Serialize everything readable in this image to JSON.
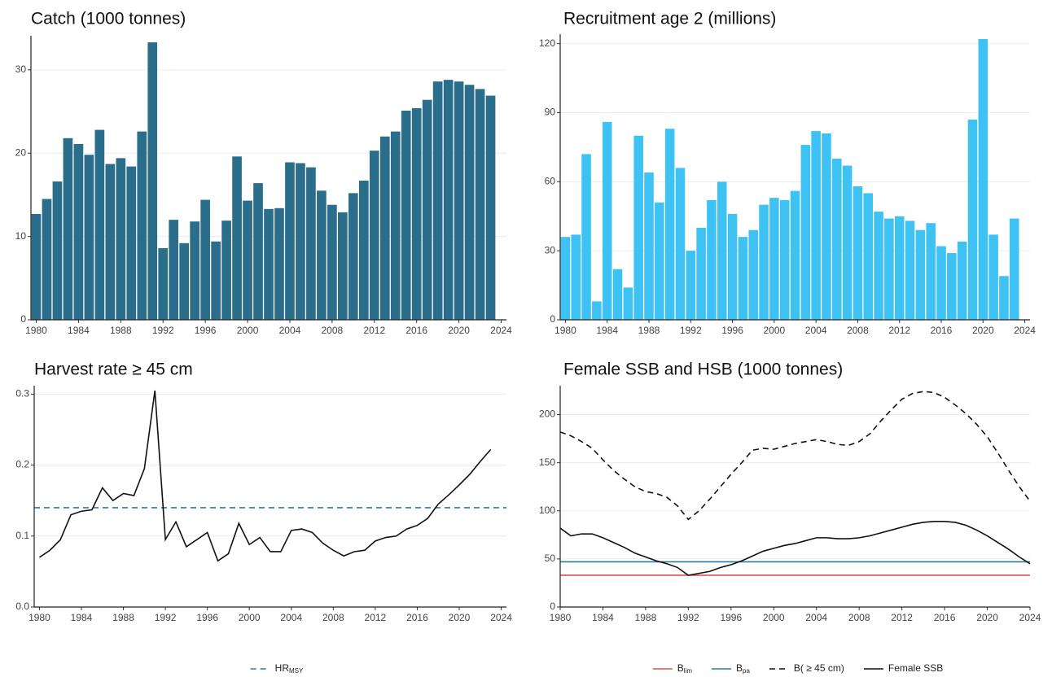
{
  "chart_data": [
    {
      "type": "bar",
      "title": "Catch (1000 tonnes)",
      "x": [
        1980,
        1981,
        1982,
        1983,
        1984,
        1985,
        1986,
        1987,
        1988,
        1989,
        1990,
        1991,
        1992,
        1993,
        1994,
        1995,
        1996,
        1997,
        1998,
        1999,
        2000,
        2001,
        2002,
        2003,
        2004,
        2005,
        2006,
        2007,
        2008,
        2009,
        2010,
        2011,
        2012,
        2013,
        2014,
        2015,
        2016,
        2017,
        2018,
        2019,
        2020,
        2021,
        2022,
        2023
      ],
      "series": [
        {
          "color": "#2a6e8c",
          "values": [
            12.7,
            14.5,
            16.6,
            21.8,
            21.1,
            19.8,
            22.8,
            18.7,
            19.4,
            18.4,
            22.6,
            33.3,
            8.6,
            12.0,
            9.2,
            11.8,
            14.4,
            9.4,
            11.9,
            19.6,
            14.3,
            16.4,
            13.3,
            13.4,
            18.9,
            18.8,
            18.3,
            15.5,
            13.8,
            12.9,
            15.2,
            16.7,
            20.3,
            22.0,
            22.6,
            25.1,
            25.4,
            26.4,
            28.6,
            28.8,
            28.6,
            28.2,
            27.7,
            26.9
          ]
        }
      ],
      "xlim": [
        1979.5,
        2024.5
      ],
      "xticks": [
        1980,
        1984,
        1988,
        1992,
        1996,
        2000,
        2004,
        2008,
        2012,
        2016,
        2020,
        2024
      ],
      "ylim": [
        0,
        33.5
      ],
      "yticks": [
        0,
        10,
        20,
        30
      ],
      "grid": true
    },
    {
      "type": "bar",
      "title": "Recruitment age 2 (millions)",
      "x": [
        1980,
        1981,
        1982,
        1983,
        1984,
        1985,
        1986,
        1987,
        1988,
        1989,
        1990,
        1991,
        1992,
        1993,
        1994,
        1995,
        1996,
        1997,
        1998,
        1999,
        2000,
        2001,
        2002,
        2003,
        2004,
        2005,
        2006,
        2007,
        2008,
        2009,
        2010,
        2011,
        2012,
        2013,
        2014,
        2015,
        2016,
        2017,
        2018,
        2019,
        2020,
        2021,
        2022,
        2023
      ],
      "series": [
        {
          "color": "#3ec1f3",
          "values": [
            36,
            37,
            72,
            8,
            86,
            22,
            14,
            80,
            64,
            51,
            83,
            66,
            30,
            40,
            52,
            60,
            46,
            36,
            39,
            50,
            53,
            52,
            56,
            76,
            82,
            81,
            70,
            67,
            58,
            55,
            47,
            44,
            45,
            43,
            39,
            42,
            32,
            29,
            34,
            87,
            122,
            37,
            19,
            44
          ]
        }
      ],
      "xlim": [
        1979.5,
        2024.5
      ],
      "xticks": [
        1980,
        1984,
        1988,
        1992,
        1996,
        2000,
        2004,
        2008,
        2012,
        2016,
        2020,
        2024
      ],
      "ylim": [
        0,
        122
      ],
      "yticks": [
        0,
        30,
        60,
        90,
        120
      ],
      "grid": true
    },
    {
      "type": "line",
      "title": "Harvest rate  ≥ 45 cm",
      "x": [
        1980,
        1981,
        1982,
        1983,
        1984,
        1985,
        1986,
        1987,
        1988,
        1989,
        1990,
        1991,
        1992,
        1993,
        1994,
        1995,
        1996,
        1997,
        1998,
        1999,
        2000,
        2001,
        2002,
        2003,
        2004,
        2005,
        2006,
        2007,
        2008,
        2009,
        2010,
        2011,
        2012,
        2013,
        2014,
        2015,
        2016,
        2017,
        2018,
        2019,
        2020,
        2021,
        2022,
        2023
      ],
      "series": [
        {
          "color": "#111111",
          "values": [
            0.07,
            0.08,
            0.095,
            0.13,
            0.135,
            0.137,
            0.168,
            0.15,
            0.16,
            0.157,
            0.195,
            0.305,
            0.095,
            0.12,
            0.085,
            0.095,
            0.105,
            0.065,
            0.075,
            0.118,
            0.088,
            0.098,
            0.078,
            0.078,
            0.108,
            0.11,
            0.105,
            0.09,
            0.08,
            0.072,
            0.078,
            0.08,
            0.093,
            0.098,
            0.1,
            0.11,
            0.115,
            0.125,
            0.145,
            0.158,
            0.172,
            0.187,
            0.205,
            0.222
          ]
        }
      ],
      "hlines": [
        {
          "name": "HR",
          "sub": "MSY",
          "value": 0.14,
          "color": "#2a7aa8",
          "dash": true
        }
      ],
      "xlim": [
        1979.5,
        2024.5
      ],
      "xticks": [
        1980,
        1984,
        1988,
        1992,
        1996,
        2000,
        2004,
        2008,
        2012,
        2016,
        2020,
        2024
      ],
      "ylim": [
        0,
        0.305
      ],
      "yticks": [
        {
          "value": 0,
          "label": "0.0"
        },
        0.1,
        0.2,
        0.3
      ],
      "grid": true,
      "legend": "bottom"
    },
    {
      "type": "line",
      "title": "Female SSB and HSB (1000 tonnes)",
      "x": [
        1980,
        1981,
        1982,
        1983,
        1984,
        1985,
        1986,
        1987,
        1988,
        1989,
        1990,
        1991,
        1992,
        1993,
        1994,
        1995,
        1996,
        1997,
        1998,
        1999,
        2000,
        2001,
        2002,
        2003,
        2004,
        2005,
        2006,
        2007,
        2008,
        2009,
        2010,
        2011,
        2012,
        2013,
        2014,
        2015,
        2016,
        2017,
        2018,
        2019,
        2020,
        2021,
        2022,
        2023,
        2024
      ],
      "series": [
        {
          "name": "B( ≥ 45 cm)",
          "color": "#111111",
          "dash": true,
          "values": [
            182,
            178,
            172,
            165,
            153,
            142,
            133,
            125,
            120,
            118,
            114,
            105,
            91,
            100,
            112,
            125,
            138,
            150,
            163,
            165,
            164,
            167,
            170,
            172,
            174,
            172,
            169,
            168,
            172,
            180,
            193,
            205,
            216,
            222,
            224,
            223,
            218,
            210,
            201,
            190,
            177,
            160,
            142,
            125,
            110
          ]
        },
        {
          "name": "Female SSB",
          "color": "#111111",
          "values": [
            82,
            74,
            76,
            76,
            72,
            67,
            62,
            56,
            52,
            48,
            45,
            41,
            33,
            35,
            37,
            41,
            44,
            48,
            53,
            58,
            61,
            64,
            66,
            69,
            72,
            72,
            71,
            71,
            72,
            74,
            77,
            80,
            83,
            86,
            88,
            89,
            89,
            88,
            85,
            80,
            74,
            67,
            60,
            52,
            45
          ]
        }
      ],
      "hlines": [
        {
          "name": "B",
          "sub": "lim",
          "value": 33,
          "color": "#d9534f"
        },
        {
          "name": "B",
          "sub": "pa",
          "value": 47,
          "color": "#2a7aa8"
        }
      ],
      "xlim": [
        1980,
        2024
      ],
      "xticks": [
        1980,
        1984,
        1988,
        1992,
        1996,
        2000,
        2004,
        2008,
        2012,
        2016,
        2020,
        2024
      ],
      "ylim": [
        0,
        225
      ],
      "yticks": [
        0,
        50,
        100,
        150,
        200
      ],
      "grid": true,
      "legend": "bottom"
    }
  ]
}
